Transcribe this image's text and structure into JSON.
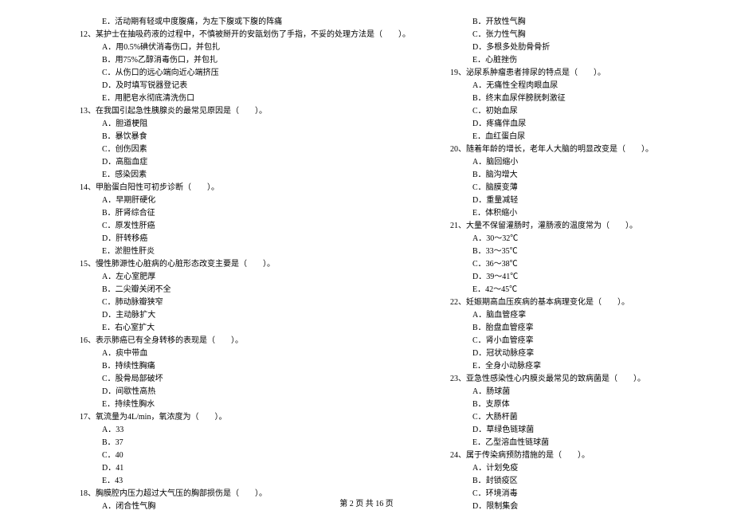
{
  "text_color": "#000000",
  "background_color": "#ffffff",
  "font_size_pt": 10,
  "footer": "第 2 页 共 16 页",
  "left": [
    {
      "t": "opt",
      "v": "E．活动期有轻或中度腹痛，为左下腹或下腹的阵痛"
    },
    {
      "t": "q",
      "v": "12、某护士在抽吸药液的过程中，不慎被掰开的安瓿划伤了手指，不妥的处理方法是（　　）。"
    },
    {
      "t": "opt",
      "v": "A．用0.5%碘伏消毒伤口，并包扎"
    },
    {
      "t": "opt",
      "v": "B．用75%乙醇消毒伤口，并包扎"
    },
    {
      "t": "opt",
      "v": "C．从伤口的远心端向近心端挤压"
    },
    {
      "t": "opt",
      "v": "D．及时填写锐器登记表"
    },
    {
      "t": "opt",
      "v": "E．用肥皂水彻底清洗伤口"
    },
    {
      "t": "q",
      "v": "13、在我国引起急性胰腺炎的最常见原因是（　　）。"
    },
    {
      "t": "opt",
      "v": "A．胆道梗阻"
    },
    {
      "t": "opt",
      "v": "B．暴饮暴食"
    },
    {
      "t": "opt",
      "v": "C．创伤因素"
    },
    {
      "t": "opt",
      "v": "D．高脂血症"
    },
    {
      "t": "opt",
      "v": "E．感染因素"
    },
    {
      "t": "q",
      "v": "14、甲胎蛋白阳性可初步诊断（　　）。"
    },
    {
      "t": "opt",
      "v": "A．早期肝硬化"
    },
    {
      "t": "opt",
      "v": "B．肝肾综合征"
    },
    {
      "t": "opt",
      "v": "C．原发性肝癌"
    },
    {
      "t": "opt",
      "v": "D．肝转移癌"
    },
    {
      "t": "opt",
      "v": "E．淤胆性肝炎"
    },
    {
      "t": "q",
      "v": "15、慢性肺源性心脏病的心脏形态改变主要是（　　）。"
    },
    {
      "t": "opt",
      "v": "A．左心室肥厚"
    },
    {
      "t": "opt",
      "v": "B．二尖瓣关闭不全"
    },
    {
      "t": "opt",
      "v": "C．肺动脉瓣狭窄"
    },
    {
      "t": "opt",
      "v": "D．主动脉扩大"
    },
    {
      "t": "opt",
      "v": "E．右心室扩大"
    },
    {
      "t": "q",
      "v": "16、表示肺癌已有全身转移的表现是（　　）。"
    },
    {
      "t": "opt",
      "v": "A．痰中带血"
    },
    {
      "t": "opt",
      "v": "B．持续性胸痛"
    },
    {
      "t": "opt",
      "v": "C．股骨局部破坏"
    },
    {
      "t": "opt",
      "v": "D．间歇性高热"
    },
    {
      "t": "opt",
      "v": "E．持续性胸水"
    },
    {
      "t": "q",
      "v": "17、氧流量为4L/min，氧浓度为（　　）。"
    },
    {
      "t": "opt",
      "v": "A．33"
    },
    {
      "t": "opt",
      "v": "B．37"
    },
    {
      "t": "opt",
      "v": "C．40"
    },
    {
      "t": "opt",
      "v": "D．41"
    },
    {
      "t": "opt",
      "v": "E．43"
    },
    {
      "t": "q",
      "v": "18、胸膜腔内压力超过大气压的胸部损伤是（　　）。"
    },
    {
      "t": "opt",
      "v": "A．闭合性气胸"
    }
  ],
  "right": [
    {
      "t": "opt",
      "v": "B．开放性气胸"
    },
    {
      "t": "opt",
      "v": "C．张力性气胸"
    },
    {
      "t": "opt",
      "v": "D．多根多处肋骨骨折"
    },
    {
      "t": "opt",
      "v": "E．心脏挫伤"
    },
    {
      "t": "q",
      "v": "19、泌尿系肿瘤患者排尿的特点是（　　）。"
    },
    {
      "t": "opt",
      "v": "A．无痛性全程肉眼血尿"
    },
    {
      "t": "opt",
      "v": "B．终末血尿伴膀胱刺激征"
    },
    {
      "t": "opt",
      "v": "C．初始血尿"
    },
    {
      "t": "opt",
      "v": "D．疼痛伴血尿"
    },
    {
      "t": "opt",
      "v": "E．血红蛋白尿"
    },
    {
      "t": "q",
      "v": "20、随着年龄的增长，老年人大脑的明显改变是（　　）。"
    },
    {
      "t": "opt",
      "v": "A．脑回缩小"
    },
    {
      "t": "opt",
      "v": "B．脑沟增大"
    },
    {
      "t": "opt",
      "v": "C．脑膜变薄"
    },
    {
      "t": "opt",
      "v": "D．重量减轻"
    },
    {
      "t": "opt",
      "v": "E．体积缩小"
    },
    {
      "t": "q",
      "v": "21、大量不保留灌肠时，灌肠液的温度常为（　　）。"
    },
    {
      "t": "opt",
      "v": "A．30～32℃"
    },
    {
      "t": "opt",
      "v": "B．33～35℃"
    },
    {
      "t": "opt",
      "v": "C．36～38℃"
    },
    {
      "t": "opt",
      "v": "D．39～41℃"
    },
    {
      "t": "opt",
      "v": "E．42～45℃"
    },
    {
      "t": "q",
      "v": "22、妊娠期高血压疾病的基本病理变化是（　　）。"
    },
    {
      "t": "opt",
      "v": "A．脑血管痉挛"
    },
    {
      "t": "opt",
      "v": "B．胎盘血管痉挛"
    },
    {
      "t": "opt",
      "v": "C．肾小血管痉挛"
    },
    {
      "t": "opt",
      "v": "D．冠状动脉痉挛"
    },
    {
      "t": "opt",
      "v": "E．全身小动脉痉挛"
    },
    {
      "t": "q",
      "v": "23、亚急性感染性心内膜炎最常见的致病菌是（　　）。"
    },
    {
      "t": "opt",
      "v": "A．肠球菌"
    },
    {
      "t": "opt",
      "v": "B．支原体"
    },
    {
      "t": "opt",
      "v": "C．大肠杆菌"
    },
    {
      "t": "opt",
      "v": "D．草绿色链球菌"
    },
    {
      "t": "opt",
      "v": "E．乙型溶血性链球菌"
    },
    {
      "t": "q",
      "v": "24、属于传染病预防措施的是（　　）。"
    },
    {
      "t": "opt",
      "v": "A．计划免疫"
    },
    {
      "t": "opt",
      "v": "B．封锁疫区"
    },
    {
      "t": "opt",
      "v": "C．环境消毒"
    },
    {
      "t": "opt",
      "v": "D．限制集会"
    }
  ]
}
